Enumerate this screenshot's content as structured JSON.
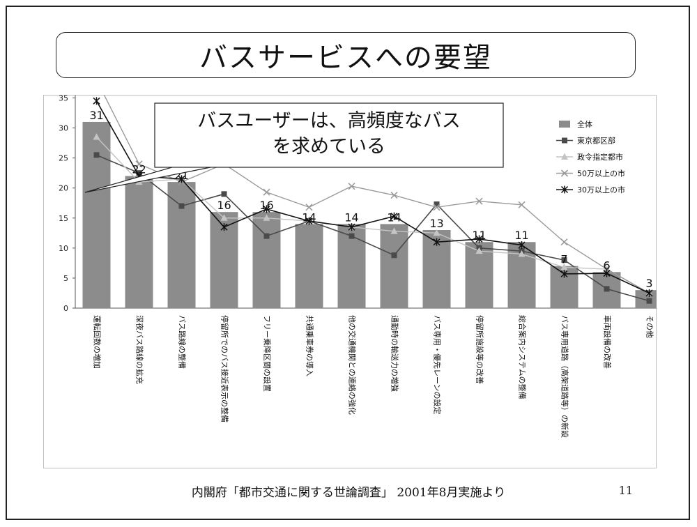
{
  "slide": {
    "title": "バスサービスへの要望",
    "callout": [
      "バスユーザーは、高頻度なバス",
      "を求めている"
    ],
    "footer": "内閣府「都市交通に関する世論調査」 2001年8月実施より",
    "page_number": "11"
  },
  "chart_data": {
    "type": "bar",
    "categories": [
      "運転回数の増加",
      "深夜バス路線の拡充",
      "バス路線の整備",
      "停留所でのバス接近表示の整備",
      "フリー乗降区間の設置",
      "共通乗車券の導入",
      "他の交通機関との連絡の強化",
      "通勤時の輸送力の増強",
      "バス専用・優先レーンの設定",
      "停留所施設等の改善",
      "総合案内システムの整備",
      "バス専用道路（高架道路等）の新設",
      "車両設備の改善",
      "その他"
    ],
    "ylim": [
      0,
      35
    ],
    "yticks": [
      0,
      5,
      10,
      15,
      20,
      25,
      30,
      35
    ],
    "grid": false,
    "legend_position": "right",
    "bar_labels": [
      "31",
      "22",
      "21",
      "16",
      "16",
      "14",
      "14",
      "14",
      "13",
      "11",
      "11",
      "7",
      "6",
      "3"
    ],
    "series": [
      {
        "name": "全体",
        "type": "bar",
        "color": "#8c8c8c",
        "values": [
          31,
          22,
          21,
          16,
          16,
          14,
          14,
          14,
          13,
          11,
          11,
          7,
          6,
          3
        ]
      },
      {
        "name": "東京都区部",
        "type": "line",
        "marker": "square",
        "color": "#4a4a4a",
        "values": [
          25.5,
          22.5,
          17,
          19,
          12,
          14.5,
          12,
          8.8,
          17.3,
          10,
          9.5,
          8,
          3.2,
          1.2
        ]
      },
      {
        "name": "政令指定都市",
        "type": "line",
        "marker": "triangle",
        "color": "#c4c4c4",
        "values": [
          28.5,
          21,
          21.5,
          15,
          15,
          14.5,
          13.5,
          12.8,
          12.5,
          9.5,
          9,
          6.8,
          6.5,
          2.5
        ]
      },
      {
        "name": "50万以上の市",
        "type": "line",
        "marker": "x",
        "color": "#9a9a9a",
        "values": [
          38,
          24,
          21,
          24,
          19.3,
          16.8,
          20.3,
          18.8,
          16.8,
          17.8,
          17.2,
          11,
          6.5,
          2.5
        ]
      },
      {
        "name": "30万以上の市",
        "type": "line",
        "marker": "asterisk",
        "color": "#111111",
        "values": [
          34.5,
          22,
          21.5,
          13.5,
          16.5,
          14.5,
          13.5,
          15.3,
          11,
          11.5,
          10.5,
          5.7,
          5.8,
          2.5
        ]
      }
    ]
  }
}
